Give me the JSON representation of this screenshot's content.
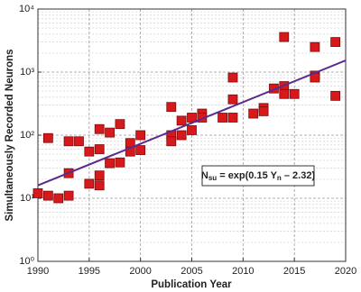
{
  "chart_data": {
    "type": "scatter",
    "x_label": "Publication Year",
    "y_label": "Simultaneously Recorded Neurons",
    "log_y": true,
    "grid": true,
    "xlim": [
      1990,
      2020
    ],
    "xticks": [
      1990,
      1995,
      2000,
      2005,
      2010,
      2015,
      2020
    ],
    "ylim": [
      1,
      10000
    ],
    "yticks": [
      {
        "value": 1,
        "label": "10⁰"
      },
      {
        "value": 10,
        "label": "10¹"
      },
      {
        "value": 100,
        "label": "10²"
      },
      {
        "value": 1000,
        "label": "10³"
      },
      {
        "value": 10000,
        "label": "10⁴"
      }
    ],
    "series": [
      {
        "color": "#d7191c",
        "x": [
          1990,
          1991,
          1991,
          1992,
          1993,
          1993,
          1993,
          1994,
          1995,
          1995,
          1996,
          1996,
          1996,
          1996,
          1997,
          1997,
          1998,
          1998,
          1999,
          1999,
          2000,
          2000,
          2003,
          2003,
          2003,
          2004,
          2004,
          2005,
          2005,
          2006,
          2006,
          2008,
          2009,
          2009,
          2009,
          2011,
          2012,
          2012,
          2013,
          2014,
          2014,
          2014,
          2015,
          2017,
          2017,
          2017,
          2019,
          2019
        ],
        "values": [
          12,
          90,
          11,
          10,
          80,
          25,
          11,
          80,
          55,
          17,
          125,
          60,
          23,
          16,
          110,
          36,
          150,
          37,
          75,
          55,
          100,
          58,
          280,
          100,
          80,
          170,
          100,
          190,
          120,
          220,
          190,
          190,
          820,
          370,
          190,
          220,
          270,
          240,
          550,
          600,
          450,
          3600,
          450,
          2500,
          880,
          820,
          3000,
          420
        ]
      },
      {
        "type": "line",
        "color": "#5b2a8e",
        "x": [
          1990,
          2020
        ],
        "values": [
          16,
          1530
        ]
      }
    ],
    "annotation": [
      "N",
      "su",
      " = exp(0.15 Y",
      "n",
      " – 2.32)"
    ]
  }
}
